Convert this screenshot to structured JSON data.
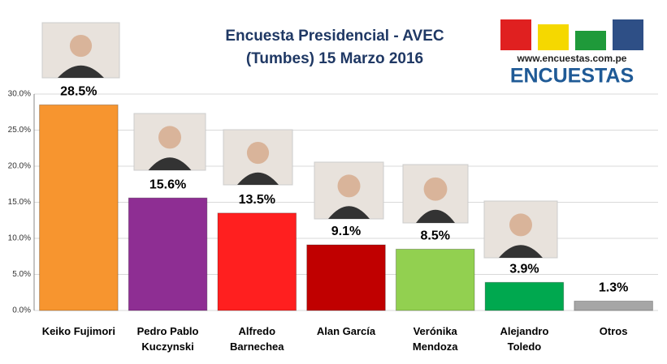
{
  "chart_data": {
    "type": "bar",
    "title": "Encuesta Presidencial - AVEC",
    "subtitle": "(Tumbes) 15 Marzo 2016",
    "annotations": [
      "www.encuestas.com.pe",
      "ENCUESTAS"
    ],
    "categories": [
      "Keiko Fujimori",
      "Pedro Pablo Kuczynski",
      "Alfredo Barnechea",
      "Alan García",
      "Verónika Mendoza",
      "Alejandro Toledo",
      "Otros"
    ],
    "values": [
      28.5,
      15.6,
      13.5,
      9.1,
      8.5,
      3.9,
      1.3
    ],
    "value_labels": [
      "28.5%",
      "15.6%",
      "13.5%",
      "9.1%",
      "8.5%",
      "3.9%",
      "1.3%"
    ],
    "colors": [
      "#f7952f",
      "#8e2e93",
      "#ff1f1f",
      "#c00000",
      "#92d050",
      "#00a84f",
      "#a6a6a6"
    ],
    "ylim": [
      0,
      30
    ],
    "yticks": [
      {
        "value": 0,
        "label": "0.0%"
      },
      {
        "value": 5,
        "label": "5.0%"
      },
      {
        "value": 10,
        "label": "10.0%"
      },
      {
        "value": 15,
        "label": "15.0%"
      },
      {
        "value": 20,
        "label": "20.0%"
      },
      {
        "value": 25,
        "label": "25.0%"
      },
      {
        "value": 30,
        "label": "30.0%"
      }
    ],
    "grid": true
  }
}
